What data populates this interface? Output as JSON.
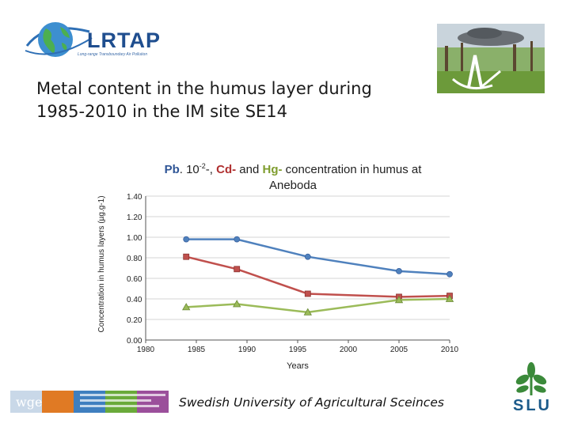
{
  "header": {
    "lrtap_logo": {
      "name": "LRTAP",
      "tagline": "Long-range Transboundary Air Pollution"
    },
    "title_line1": "Metal content in the humus layer during",
    "title_line2": "1985-2010 in the IM site SE14"
  },
  "chart_title": {
    "pb": "Pb",
    "pb_factor": ". 10",
    "pb_exp": "-2",
    "part2": "-, ",
    "cd": "Cd-",
    "and": " and ",
    "hg": "Hg-",
    "part3": " concentration in humus at",
    "line2": "Aneboda"
  },
  "chart_data": {
    "type": "line",
    "title": "Pb. 10-2-, Cd- and Hg- concentration in humus at Aneboda",
    "xlabel": "Years",
    "ylabel": "Concentration in humus layers (µg.g-1)",
    "xlim": [
      1980,
      2010
    ],
    "ylim": [
      0,
      1.4
    ],
    "x_ticks": [
      "1980",
      "1985",
      "1990",
      "1995",
      "2000",
      "2005",
      "2010"
    ],
    "y_ticks": [
      "0.00",
      "0.20",
      "0.40",
      "0.60",
      "0.80",
      "1.00",
      "1.20",
      "1.40"
    ],
    "grid": "horizontal",
    "series": [
      {
        "key": "pb",
        "color": "#4f81bd",
        "marker": "circle",
        "x": [
          1984,
          1989,
          1996,
          2005,
          2010
        ],
        "y": [
          0.98,
          0.98,
          0.81,
          0.67,
          0.64
        ]
      },
      {
        "key": "cd",
        "color": "#c0504d",
        "marker": "square",
        "x": [
          1984,
          1989,
          1996,
          2005,
          2010
        ],
        "y": [
          0.81,
          0.69,
          0.45,
          0.42,
          0.43
        ]
      },
      {
        "key": "hg",
        "color": "#9bbb59",
        "marker": "triangle",
        "x": [
          1984,
          1989,
          1996,
          2005,
          2010
        ],
        "y": [
          0.32,
          0.35,
          0.27,
          0.39,
          0.4
        ]
      }
    ]
  },
  "footer": {
    "wge_logo": "wge",
    "university": "Swedish University of Agricultural Sceinces",
    "slu_logo": "SLU"
  },
  "colors": {
    "title_text": "#1a1a1a",
    "pb": "#4f81bd",
    "cd": "#c0504d",
    "hg": "#9bbb59"
  }
}
